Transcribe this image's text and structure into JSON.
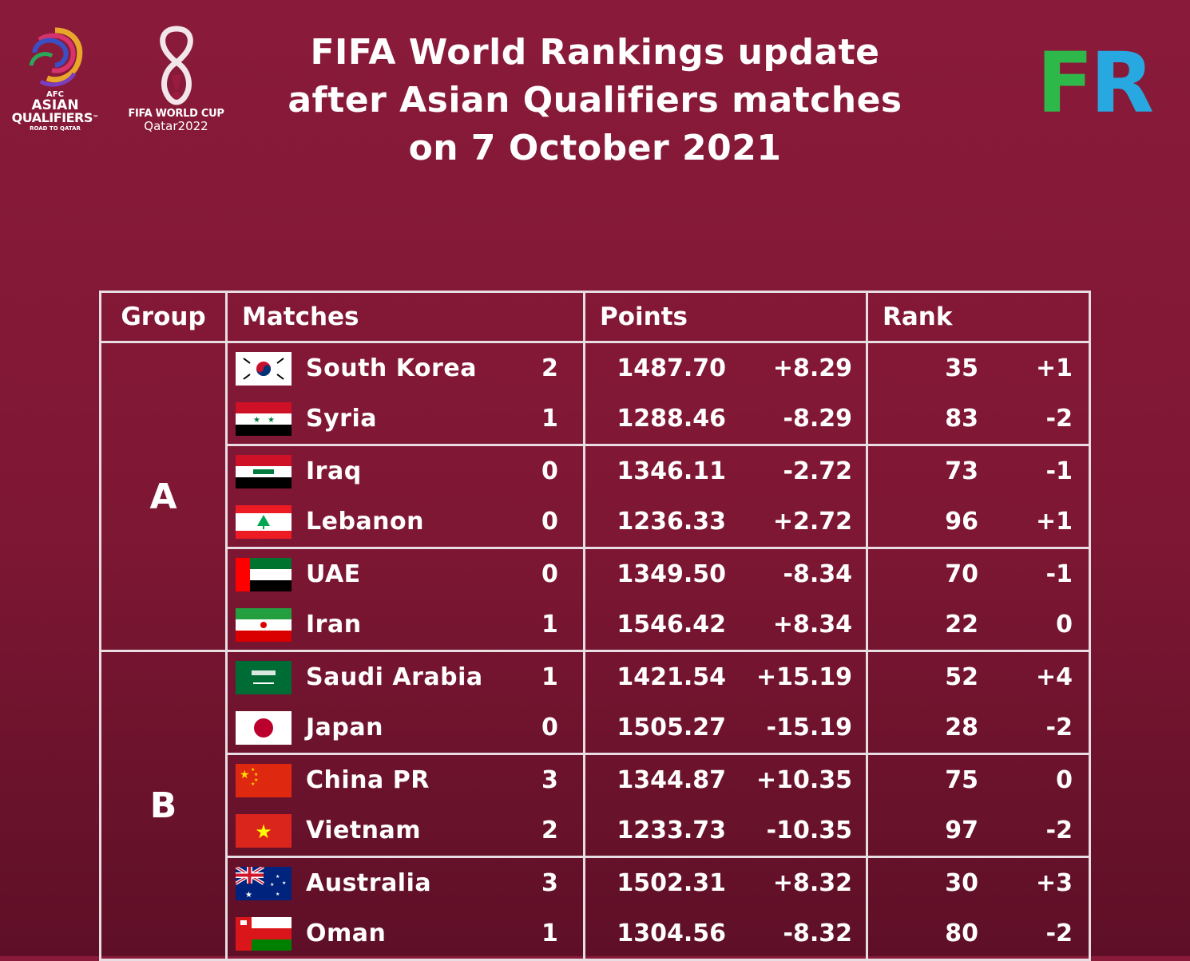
{
  "title_lines": [
    "FIFA World Rankings update",
    "after Asian Qualifiers matches",
    "on 7 October 2021"
  ],
  "logos": {
    "afc": {
      "line1": "AFC",
      "line2": "ASIAN",
      "line3": "QUALIFIERS",
      "tm": "™",
      "line4": "ROAD TO QATAR"
    },
    "worldcup": {
      "line1": "FIFA WORLD CUP",
      "line2": "Qatar2022"
    },
    "fr": {
      "f": "F",
      "r": "R",
      "f_color": "#2fb84a",
      "r_color": "#28a8e0"
    }
  },
  "table": {
    "headers": {
      "group": "Group",
      "matches": "Matches",
      "points": "Points",
      "rank": "Rank"
    },
    "groups": [
      {
        "name": "A",
        "pairs": [
          [
            {
              "team": "South Korea",
              "flag": "south-korea-flag",
              "score": "2",
              "points": "1487.70",
              "points_change": "+8.29",
              "rank": "35",
              "rank_change": "+1"
            },
            {
              "team": "Syria",
              "flag": "syria-flag",
              "score": "1",
              "points": "1288.46",
              "points_change": "-8.29",
              "rank": "83",
              "rank_change": "-2"
            }
          ],
          [
            {
              "team": "Iraq",
              "flag": "iraq-flag",
              "score": "0",
              "points": "1346.11",
              "points_change": "-2.72",
              "rank": "73",
              "rank_change": "-1"
            },
            {
              "team": "Lebanon",
              "flag": "lebanon-flag",
              "score": "0",
              "points": "1236.33",
              "points_change": "+2.72",
              "rank": "96",
              "rank_change": "+1"
            }
          ],
          [
            {
              "team": "UAE",
              "flag": "uae-flag",
              "score": "0",
              "points": "1349.50",
              "points_change": "-8.34",
              "rank": "70",
              "rank_change": "-1"
            },
            {
              "team": "Iran",
              "flag": "iran-flag",
              "score": "1",
              "points": "1546.42",
              "points_change": "+8.34",
              "rank": "22",
              "rank_change": "0"
            }
          ]
        ]
      },
      {
        "name": "B",
        "pairs": [
          [
            {
              "team": "Saudi Arabia",
              "flag": "saudi-arabia-flag",
              "score": "1",
              "points": "1421.54",
              "points_change": "+15.19",
              "rank": "52",
              "rank_change": "+4"
            },
            {
              "team": "Japan",
              "flag": "japan-flag",
              "score": "0",
              "points": "1505.27",
              "points_change": "-15.19",
              "rank": "28",
              "rank_change": "-2"
            }
          ],
          [
            {
              "team": "China PR",
              "flag": "china-flag",
              "score": "3",
              "points": "1344.87",
              "points_change": "+10.35",
              "rank": "75",
              "rank_change": "0"
            },
            {
              "team": "Vietnam",
              "flag": "vietnam-flag",
              "score": "2",
              "points": "1233.73",
              "points_change": "-10.35",
              "rank": "97",
              "rank_change": "-2"
            }
          ],
          [
            {
              "team": "Australia",
              "flag": "australia-flag",
              "score": "3",
              "points": "1502.31",
              "points_change": "+8.32",
              "rank": "30",
              "rank_change": "+3"
            },
            {
              "team": "Oman",
              "flag": "oman-flag",
              "score": "1",
              "points": "1304.56",
              "points_change": "-8.32",
              "rank": "80",
              "rank_change": "-2"
            }
          ]
        ]
      }
    ]
  },
  "colors": {
    "background": "#8a1a3a",
    "border": "#e8dde2",
    "text": "#ffffff"
  }
}
